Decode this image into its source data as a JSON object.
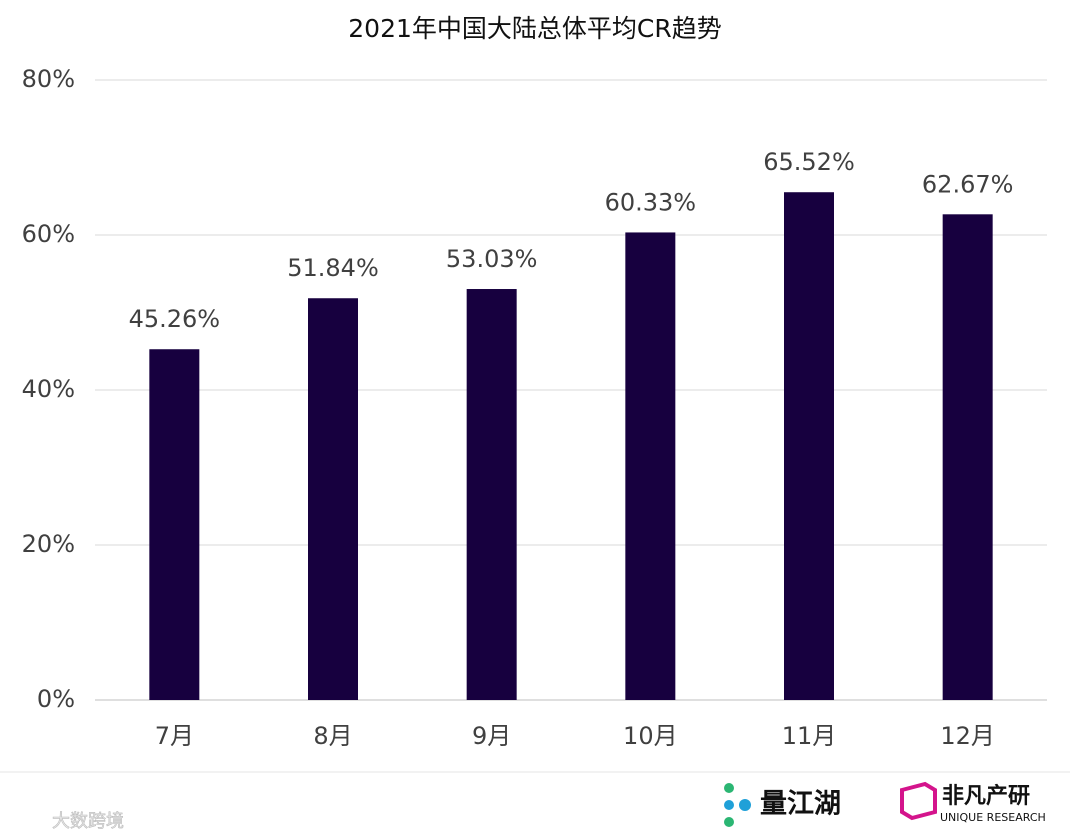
{
  "chart_data": {
    "type": "bar",
    "title": "2021年中国大陆总体平均CR趋势",
    "categories": [
      "7月",
      "8月",
      "9月",
      "10月",
      "11月",
      "12月"
    ],
    "values": [
      45.26,
      51.84,
      53.03,
      60.33,
      65.52,
      62.67
    ],
    "value_labels": [
      "45.26%",
      "51.84%",
      "53.03%",
      "60.33%",
      "65.52%",
      "62.67%"
    ],
    "color": "#17003f",
    "ylim": [
      0,
      80
    ],
    "yticks": [
      {
        "value": 0,
        "label": "0%"
      },
      {
        "value": 20,
        "label": "20%"
      },
      {
        "value": 40,
        "label": "40%"
      },
      {
        "value": 60,
        "label": "60%"
      },
      {
        "value": 80,
        "label": "80%"
      }
    ],
    "grid": true
  },
  "footer": {
    "logo_left": "量江湖",
    "logo_right": "非凡产研",
    "logo_right_sub": "UNIQUE RESEARCH",
    "watermark": "大数跨境"
  }
}
